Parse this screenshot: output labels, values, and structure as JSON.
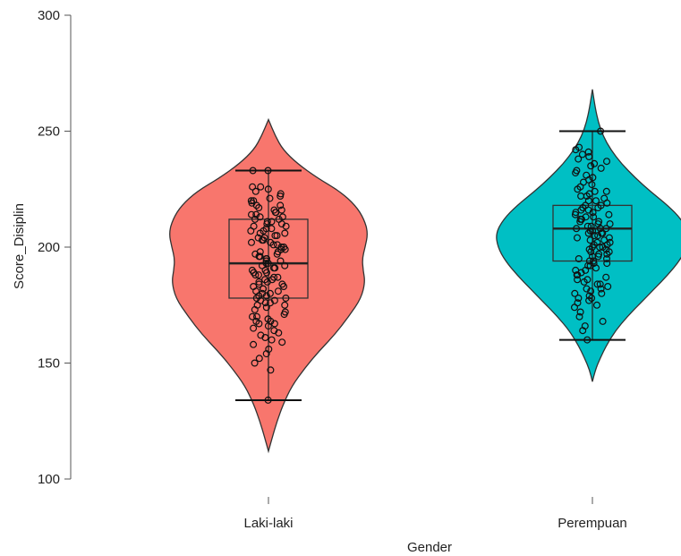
{
  "chart_data": {
    "type": "violin",
    "xlabel": "Gender",
    "ylabel": "Score_Disiplin",
    "ylim": [
      100,
      300
    ],
    "yticks": [
      100,
      150,
      200,
      250,
      300
    ],
    "grid": false,
    "legend": "none",
    "groups": [
      {
        "category": "Laki-laki",
        "color": "#F8766D",
        "violin_range": [
          112,
          255
        ],
        "density": [
          [
            112,
            0.0
          ],
          [
            118,
            0.04
          ],
          [
            125,
            0.09
          ],
          [
            132,
            0.15
          ],
          [
            140,
            0.24
          ],
          [
            148,
            0.38
          ],
          [
            155,
            0.52
          ],
          [
            162,
            0.68
          ],
          [
            170,
            0.83
          ],
          [
            178,
            0.96
          ],
          [
            185,
            1.0
          ],
          [
            190,
            0.98
          ],
          [
            195,
            0.97
          ],
          [
            200,
            1.0
          ],
          [
            206,
            1.03
          ],
          [
            212,
            0.99
          ],
          [
            218,
            0.9
          ],
          [
            224,
            0.74
          ],
          [
            230,
            0.5
          ],
          [
            236,
            0.3
          ],
          [
            242,
            0.15
          ],
          [
            248,
            0.07
          ],
          [
            255,
            0.0
          ]
        ],
        "box": {
          "lower_whisker": 134,
          "q1": 178,
          "median": 193,
          "q3": 212,
          "upper_whisker": 233
        },
        "points": [
          134,
          147,
          150,
          152,
          154,
          156,
          158,
          159,
          160,
          161,
          162,
          163,
          164,
          165,
          166,
          167,
          167,
          168,
          168,
          169,
          170,
          170,
          171,
          172,
          173,
          174,
          175,
          175,
          176,
          176,
          177,
          177,
          178,
          178,
          179,
          179,
          180,
          180,
          181,
          181,
          182,
          182,
          183,
          183,
          184,
          184,
          185,
          185,
          186,
          186,
          187,
          187,
          188,
          188,
          189,
          189,
          190,
          190,
          191,
          191,
          192,
          192,
          193,
          193,
          194,
          194,
          195,
          195,
          196,
          196,
          197,
          197,
          198,
          198,
          199,
          199,
          200,
          200,
          201,
          201,
          202,
          202,
          203,
          203,
          204,
          204,
          205,
          205,
          206,
          206,
          207,
          207,
          208,
          208,
          209,
          209,
          210,
          210,
          211,
          211,
          212,
          212,
          213,
          213,
          214,
          214,
          215,
          215,
          216,
          216,
          217,
          218,
          218,
          219,
          220,
          220,
          221,
          222,
          223,
          224,
          225,
          226,
          226,
          233,
          233
        ]
      },
      {
        "category": "Perempuan",
        "color": "#00BFC4",
        "violin_range": [
          142,
          268
        ],
        "density": [
          [
            142,
            0.0
          ],
          [
            147,
            0.03
          ],
          [
            152,
            0.08
          ],
          [
            158,
            0.15
          ],
          [
            164,
            0.24
          ],
          [
            170,
            0.36
          ],
          [
            176,
            0.5
          ],
          [
            182,
            0.64
          ],
          [
            188,
            0.78
          ],
          [
            194,
            0.9
          ],
          [
            200,
            0.98
          ],
          [
            206,
            1.0
          ],
          [
            212,
            0.92
          ],
          [
            218,
            0.78
          ],
          [
            224,
            0.6
          ],
          [
            230,
            0.44
          ],
          [
            236,
            0.3
          ],
          [
            242,
            0.19
          ],
          [
            248,
            0.11
          ],
          [
            254,
            0.06
          ],
          [
            260,
            0.03
          ],
          [
            268,
            0.0
          ]
        ],
        "box": {
          "lower_whisker": 160,
          "q1": 194,
          "median": 208,
          "q3": 218,
          "upper_whisker": 250
        },
        "points": [
          160,
          164,
          166,
          168,
          170,
          172,
          174,
          175,
          176,
          177,
          178,
          178,
          179,
          180,
          180,
          181,
          182,
          182,
          183,
          184,
          184,
          185,
          186,
          186,
          187,
          188,
          188,
          189,
          190,
          190,
          191,
          192,
          192,
          193,
          193,
          194,
          194,
          195,
          195,
          196,
          196,
          197,
          197,
          198,
          198,
          199,
          199,
          200,
          200,
          200,
          201,
          201,
          202,
          202,
          203,
          203,
          204,
          204,
          205,
          205,
          206,
          206,
          206,
          207,
          207,
          208,
          208,
          208,
          209,
          209,
          210,
          210,
          211,
          211,
          212,
          212,
          213,
          213,
          214,
          214,
          215,
          215,
          216,
          216,
          217,
          217,
          218,
          218,
          219,
          220,
          220,
          221,
          222,
          222,
          223,
          224,
          224,
          225,
          226,
          227,
          228,
          229,
          230,
          231,
          232,
          233,
          234,
          235,
          236,
          237,
          238,
          239,
          240,
          241,
          242,
          243,
          250
        ]
      }
    ]
  }
}
